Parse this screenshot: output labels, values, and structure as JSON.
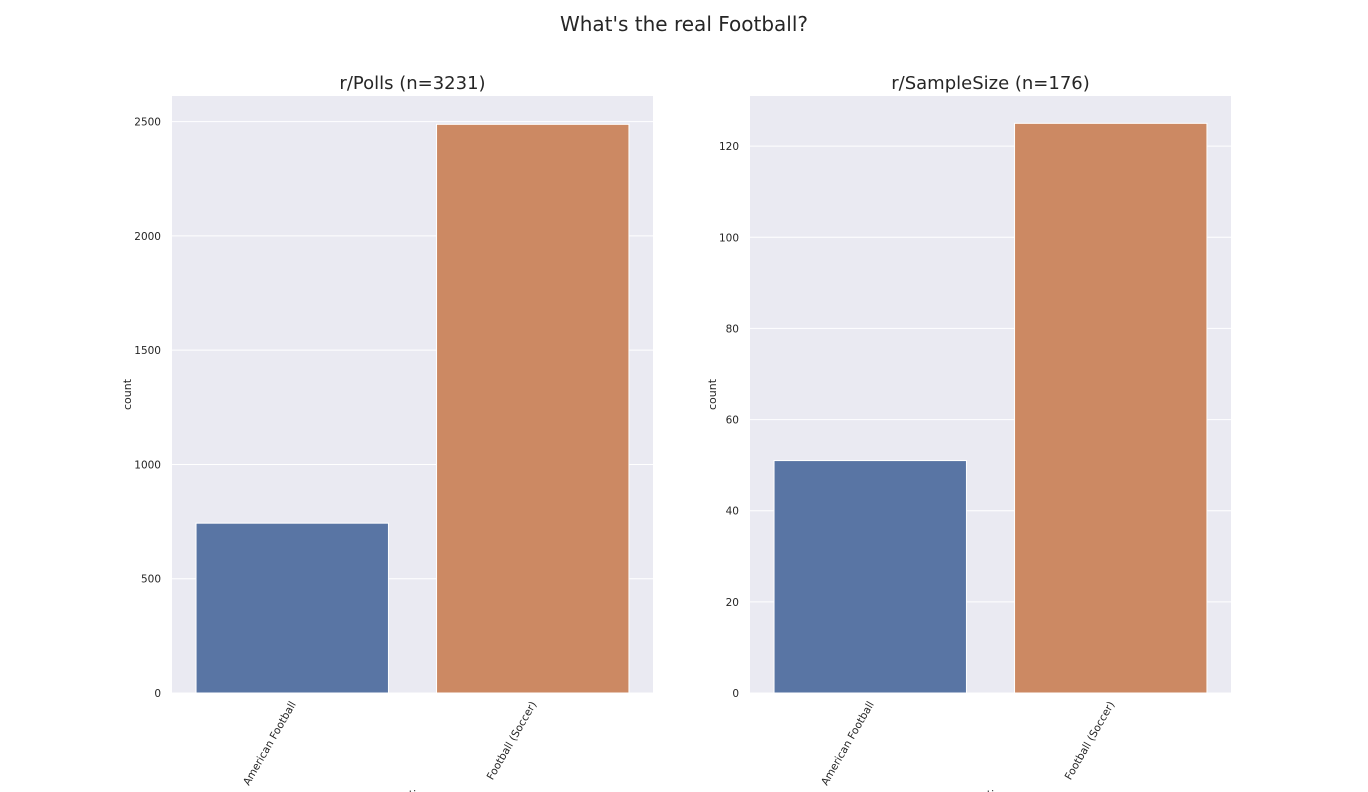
{
  "figure": {
    "title": "What's the real Football?"
  },
  "chart_data": [
    {
      "type": "bar",
      "title": "r/Polls (n=3231)",
      "xlabel": "option",
      "ylabel": "count",
      "categories": [
        "American Football",
        "Football (Soccer)"
      ],
      "values": [
        743,
        2488
      ],
      "colors": [
        "#5975a4",
        "#cc8963"
      ],
      "yticks": [
        0,
        500,
        1000,
        1500,
        2000,
        2500
      ],
      "ylim": [
        0,
        2612
      ],
      "grid": true,
      "background": "#eaeaf2"
    },
    {
      "type": "bar",
      "title": "r/SampleSize (n=176)",
      "xlabel": "option",
      "ylabel": "count",
      "categories": [
        "American Football",
        "Football (Soccer)"
      ],
      "values": [
        51,
        125
      ],
      "colors": [
        "#5975a4",
        "#cc8963"
      ],
      "yticks": [
        0,
        20,
        40,
        60,
        80,
        100,
        120
      ],
      "ylim": [
        0,
        131
      ],
      "grid": true,
      "background": "#eaeaf2"
    }
  ]
}
